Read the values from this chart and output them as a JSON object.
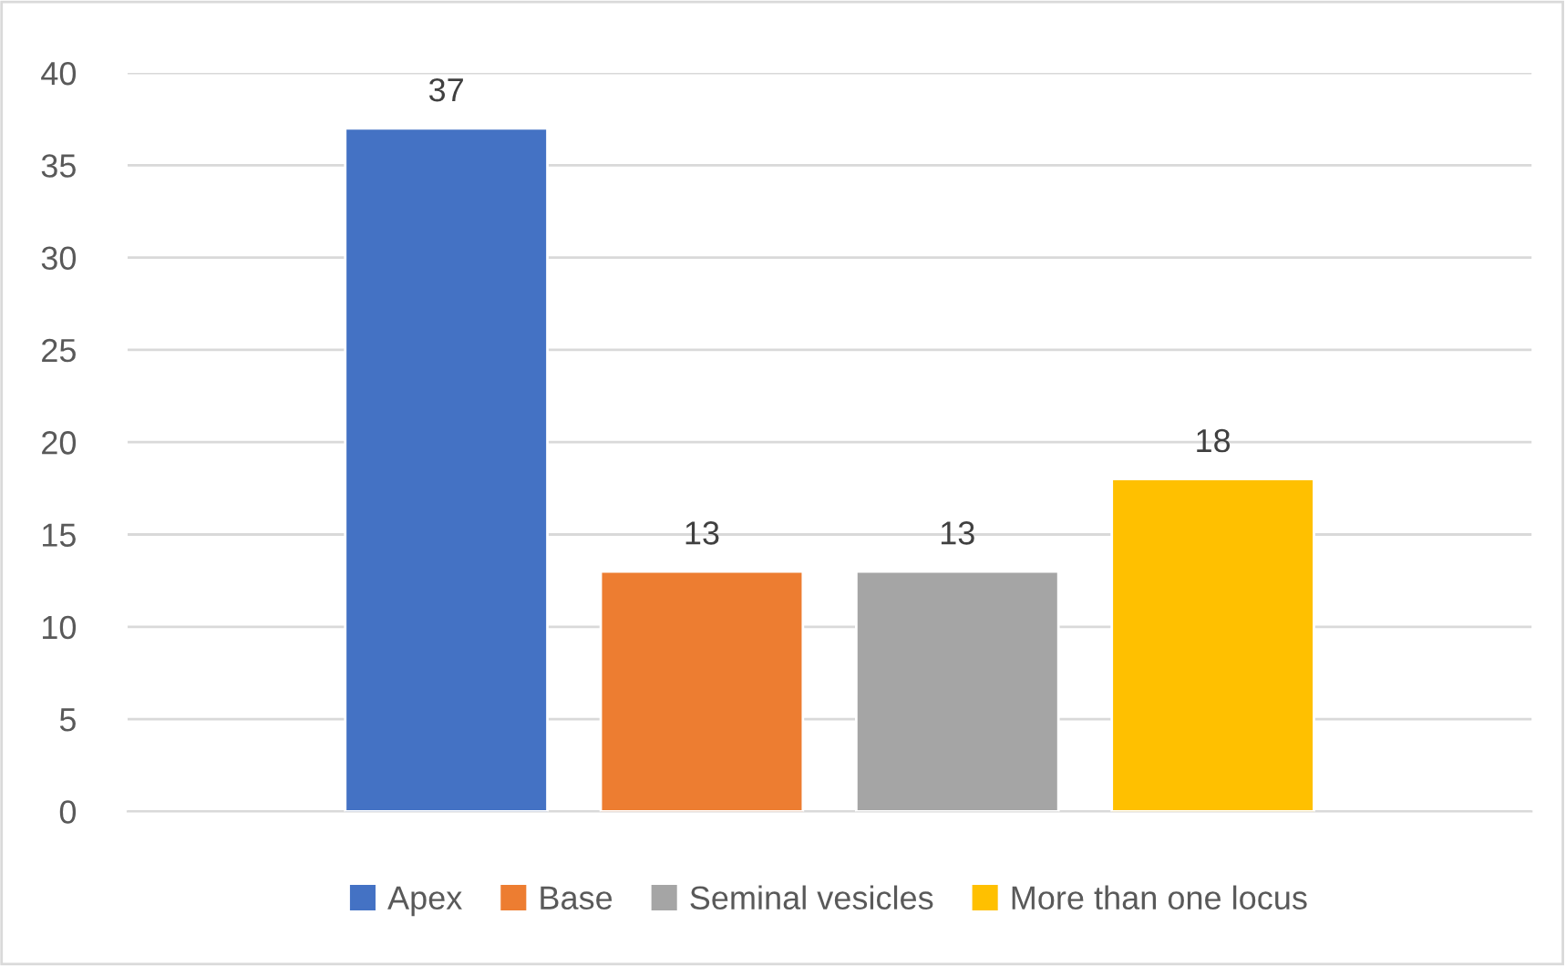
{
  "chart_data": {
    "type": "bar",
    "categories": [
      null
    ],
    "series": [
      {
        "name": "Apex",
        "color": "#4472c4",
        "values": [
          37
        ]
      },
      {
        "name": "Base",
        "color": "#ed7d31",
        "values": [
          13
        ]
      },
      {
        "name": "Seminal vesicles",
        "color": "#a5a5a5",
        "values": [
          13
        ]
      },
      {
        "name": "More than one locus",
        "color": "#ffc000",
        "values": [
          18
        ]
      }
    ],
    "ylim": [
      0,
      40
    ],
    "yticks": [
      0,
      5,
      10,
      15,
      20,
      25,
      30,
      35,
      40
    ],
    "grid": "y",
    "legend": "bottom",
    "data_labels": true
  }
}
